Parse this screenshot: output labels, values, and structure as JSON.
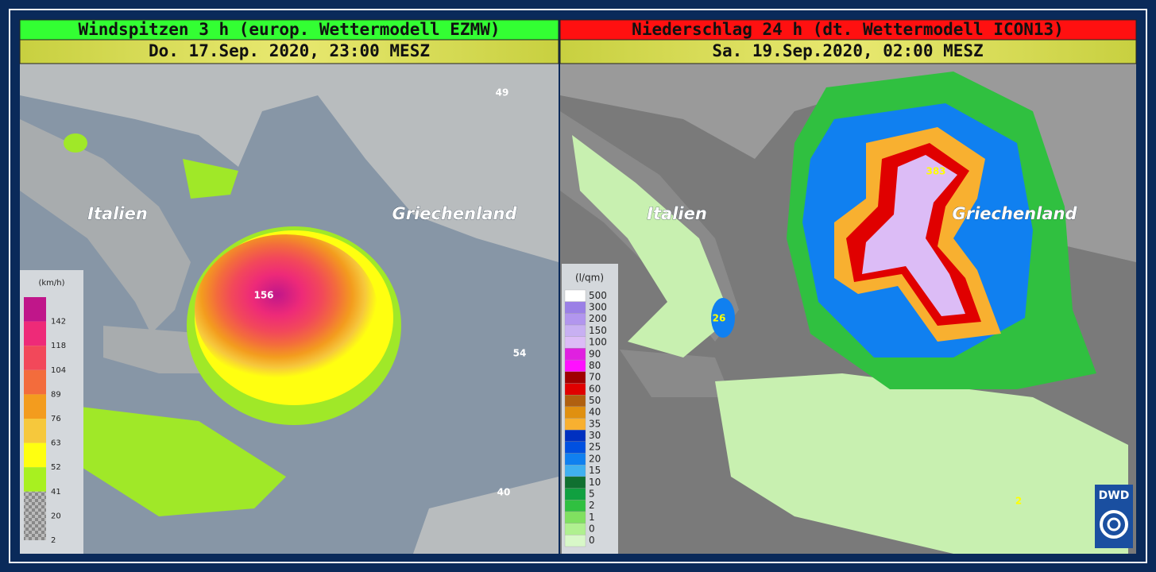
{
  "panels": [
    {
      "title": "Windspitzen 3 h (europ. Wettermodell EZMW)",
      "date": "Do. 17.Sep. 2020, 23:00 MESZ",
      "labels": {
        "italy": "Italien",
        "greece": "Griechenland"
      },
      "values": [
        "156",
        "49",
        "54",
        "40"
      ],
      "legend": {
        "unit": "(km/h)",
        "items": [
          {
            "color": "#c0168a",
            "label": "142"
          },
          {
            "color": "#ee2a78",
            "label": "118"
          },
          {
            "color": "#f2485a",
            "label": "104"
          },
          {
            "color": "#f36c3c",
            "label": "89"
          },
          {
            "color": "#f39c1e",
            "label": "76"
          },
          {
            "color": "#f6c83c",
            "label": "63"
          },
          {
            "color": "#ffff10",
            "label": "52"
          },
          {
            "color": "#a8f020",
            "label": "41"
          },
          {
            "color": "#9a9a9a",
            "label": "20"
          },
          {
            "color": "#b4b4b4",
            "label": "2"
          }
        ]
      }
    },
    {
      "title": "Niederschlag 24 h (dt. Wettermodell ICON13)",
      "date": "Sa. 19.Sep.2020, 02:00 MESZ",
      "labels": {
        "italy": "Italien",
        "greece": "Griechenland"
      },
      "values": [
        "383",
        "26",
        "2"
      ],
      "legend": {
        "unit": "(l/qm)",
        "items": [
          {
            "color": "#ffffff",
            "label": "500"
          },
          {
            "color": "#9b80e6",
            "label": "300"
          },
          {
            "color": "#b296ee",
            "label": "200"
          },
          {
            "color": "#c8b0f2",
            "label": "150"
          },
          {
            "color": "#dcbcf6",
            "label": "100"
          },
          {
            "color": "#e020e0",
            "label": "90"
          },
          {
            "color": "#ff10ff",
            "label": "80"
          },
          {
            "color": "#a00000",
            "label": "70"
          },
          {
            "color": "#e00000",
            "label": "60"
          },
          {
            "color": "#b06010",
            "label": "50"
          },
          {
            "color": "#e09010",
            "label": "40"
          },
          {
            "color": "#f8b030",
            "label": "35"
          },
          {
            "color": "#0030c0",
            "label": "30"
          },
          {
            "color": "#0050e0",
            "label": "25"
          },
          {
            "color": "#1080f0",
            "label": "20"
          },
          {
            "color": "#40b0f0",
            "label": "15"
          },
          {
            "color": "#107030",
            "label": "10"
          },
          {
            "color": "#10a040",
            "label": "5"
          },
          {
            "color": "#30c040",
            "label": "2"
          },
          {
            "color": "#80e060",
            "label": "1"
          },
          {
            "color": "#b0f090",
            "label": "0"
          },
          {
            "color": "#d8f8c8",
            "label": "0"
          }
        ]
      }
    }
  ],
  "logo": "DWD"
}
